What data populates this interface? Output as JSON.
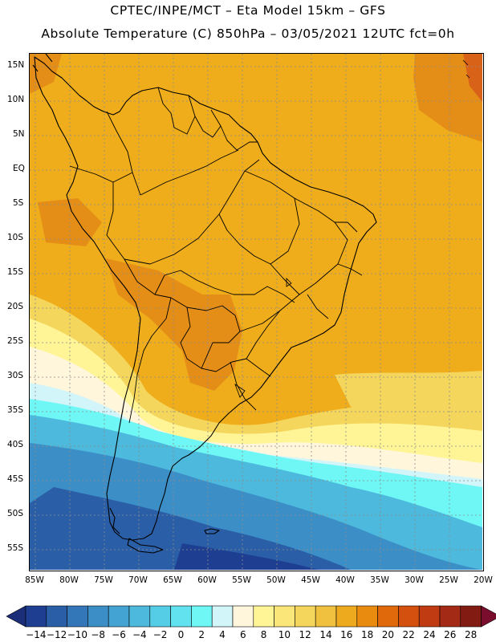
{
  "title_line1": "CPTEC/INPE/MCT –  Eta Model 15km – GFS",
  "title_line2": "Absolute Temperature (C) 850hPa – 03/05/2021 12UTC fct=0h",
  "lat_labels": [
    "15N",
    "10N",
    "5N",
    "EQ",
    "5S",
    "10S",
    "15S",
    "20S",
    "25S",
    "30S",
    "35S",
    "40S",
    "45S",
    "50S",
    "55S"
  ],
  "lon_labels": [
    "85W",
    "80W",
    "75W",
    "70W",
    "65W",
    "60W",
    "55W",
    "50W",
    "45W",
    "40W",
    "35W",
    "30W",
    "25W",
    "20W"
  ],
  "colorbar": {
    "labels": [
      "-14",
      "-12",
      "-10",
      "-8",
      "-6",
      "-4",
      "-2",
      "0",
      "2",
      "4",
      "6",
      "8",
      "10",
      "12",
      "14",
      "16",
      "18",
      "20",
      "22",
      "24",
      "26",
      "28"
    ],
    "colors": [
      "#1e3f91",
      "#2a5fa8",
      "#3477b8",
      "#3c8ec6",
      "#43a3d2",
      "#4cb9dd",
      "#56cde6",
      "#61e2ee",
      "#6ef7f5",
      "#d2f5fa",
      "#fff6dc",
      "#fff596",
      "#fbe67a",
      "#f5d65c",
      "#f0c13e",
      "#edaa1f",
      "#e88b0e",
      "#e06a0b",
      "#d4500f",
      "#c03a12",
      "#a32a14",
      "#821c13"
    ],
    "under_color": "#1b2e7a",
    "over_color": "#7a0d2e"
  },
  "map": {
    "background": "#efad1c",
    "coastline_color": "#000000",
    "grid_color": "#9a9a9a"
  }
}
